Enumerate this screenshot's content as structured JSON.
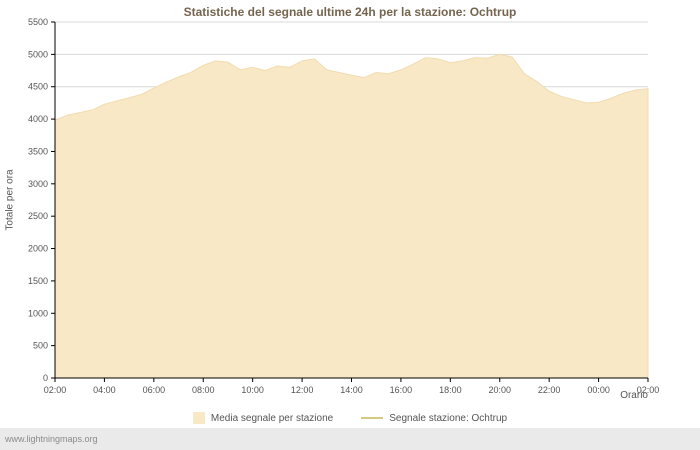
{
  "chart_data": {
    "type": "area",
    "title": "Statistiche del segnale ultime 24h per la stazione: Ochtrup",
    "xlabel": "Orario",
    "ylabel": "Totale per ora",
    "ylim": [
      0,
      5500
    ],
    "y_tick_step": 500,
    "xlim": [
      0,
      24
    ],
    "x_tick_step": 2,
    "grid": true,
    "grid_color": "#d9d9d9",
    "axis_color": "#000000",
    "legend_position": "bottom",
    "x_ticks": [
      "02:00",
      "04:00",
      "06:00",
      "08:00",
      "10:00",
      "12:00",
      "14:00",
      "16:00",
      "18:00",
      "20:00",
      "22:00",
      "00:00",
      "02:00"
    ],
    "x_hours": [
      0,
      0.5,
      1,
      1.5,
      2,
      2.5,
      3,
      3.5,
      4,
      4.5,
      5,
      5.5,
      6,
      6.5,
      7,
      7.5,
      8,
      8.5,
      9,
      9.5,
      10,
      10.5,
      11,
      11.5,
      12,
      12.5,
      13,
      13.5,
      14,
      14.5,
      15,
      15.5,
      16,
      16.5,
      17,
      17.5,
      18,
      18.5,
      19,
      19.5,
      20,
      20.5,
      21,
      21.5,
      22,
      22.5,
      23,
      23.5,
      24
    ],
    "series": [
      {
        "name": "Media segnale per stazione",
        "type": "area",
        "color": "#f8e8c6",
        "edge": "#f1dcae",
        "values": [
          3980,
          4060,
          4100,
          4140,
          4230,
          4280,
          4330,
          4380,
          4480,
          4570,
          4650,
          4720,
          4830,
          4900,
          4880,
          4760,
          4800,
          4750,
          4820,
          4800,
          4900,
          4930,
          4760,
          4720,
          4680,
          4640,
          4720,
          4700,
          4760,
          4850,
          4950,
          4930,
          4870,
          4900,
          4950,
          4940,
          5000,
          4960,
          4700,
          4580,
          4430,
          4350,
          4300,
          4250,
          4260,
          4320,
          4400,
          4450,
          4470
        ]
      },
      {
        "name": "Segnale stazione: Ochtrup",
        "type": "line",
        "color": "#d6c87c",
        "values": []
      }
    ]
  },
  "footer": {
    "watermark": "www.lightningmaps.org"
  }
}
